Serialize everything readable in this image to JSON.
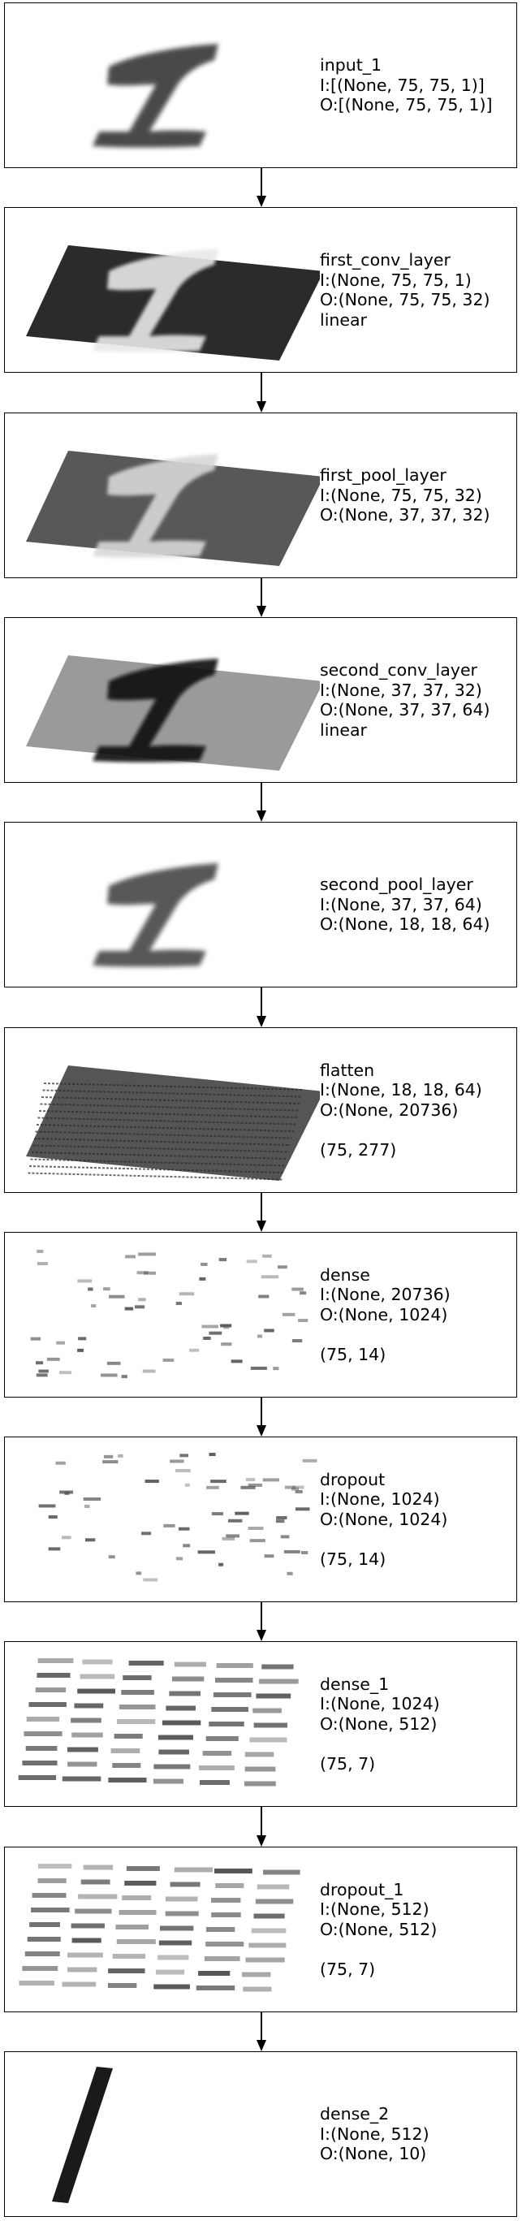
{
  "layers": [
    {
      "name": "input_1",
      "input": "I:[(None, 75, 75, 1)]",
      "output": "O:[(None, 75, 75, 1)]",
      "activation": "",
      "shape": "",
      "viz": "digit-one",
      "shade": "#2a2a2a",
      "bg": "#ffffff"
    },
    {
      "name": "first_conv_layer",
      "input": "I:(None, 75, 75, 1)",
      "output": "O:(None, 75, 75, 32)",
      "activation": "linear",
      "shape": "",
      "viz": "digit-on-plane",
      "shade": "#e8e8e8",
      "bg": "#2b2b2b"
    },
    {
      "name": "first_pool_layer",
      "input": "I:(None, 75, 75, 32)",
      "output": "O:(None, 37, 37, 32)",
      "activation": "",
      "shape": "",
      "viz": "digit-on-plane",
      "shade": "#d8d8d8",
      "bg": "#585858"
    },
    {
      "name": "second_conv_layer",
      "input": "I:(None, 37, 37, 32)",
      "output": "O:(None, 37, 37, 64)",
      "activation": "linear",
      "shape": "",
      "viz": "digit-on-plane",
      "shade": "#111111",
      "bg": "#9a9a9a"
    },
    {
      "name": "second_pool_layer",
      "input": "I:(None, 37, 37, 64)",
      "output": "O:(None, 18, 18, 64)",
      "activation": "",
      "shape": "",
      "viz": "digit-one",
      "shade": "#3a3a3a",
      "bg": "#ffffff"
    },
    {
      "name": "flatten",
      "input": "I:(None, 18, 18, 64)",
      "output": "O:(None, 20736)",
      "activation": "",
      "shape": "(75, 277)",
      "viz": "dense-plane",
      "shade": "#3d3d3d",
      "bg": "#555555"
    },
    {
      "name": "dense",
      "input": "I:(None, 20736)",
      "output": "O:(None, 1024)",
      "activation": "",
      "shape": "(75, 14)",
      "viz": "sparse-dashes",
      "shade": "#555555",
      "bg": "#ffffff"
    },
    {
      "name": "dropout",
      "input": "I:(None, 1024)",
      "output": "O:(None, 1024)",
      "activation": "",
      "shape": "(75, 14)",
      "viz": "sparse-dashes",
      "shade": "#555555",
      "bg": "#ffffff"
    },
    {
      "name": "dense_1",
      "input": "I:(None, 1024)",
      "output": "O:(None, 512)",
      "activation": "",
      "shape": "(75, 7)",
      "viz": "dashes-grid",
      "shade": "#444444",
      "bg": "#ffffff"
    },
    {
      "name": "dropout_1",
      "input": "I:(None, 512)",
      "output": "O:(None, 512)",
      "activation": "",
      "shape": "(75, 7)",
      "viz": "dashes-grid",
      "shade": "#444444",
      "bg": "#ffffff"
    },
    {
      "name": "dense_2",
      "input": "I:(None, 512)",
      "output": "O:(None, 10)",
      "activation": "",
      "shape": "",
      "viz": "single-bar",
      "shade": "#1a1a1a",
      "bg": "#ffffff"
    }
  ]
}
